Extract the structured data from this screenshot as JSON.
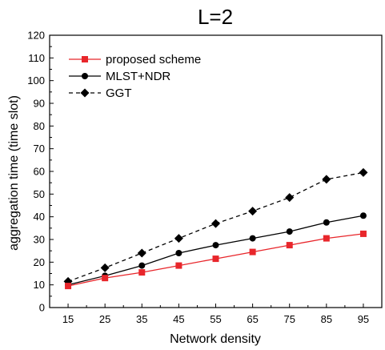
{
  "chart_data": {
    "type": "line",
    "title": "L=2",
    "xlabel": "Network density",
    "ylabel": "aggregation time (time slot)",
    "x": [
      15,
      25,
      35,
      45,
      55,
      65,
      75,
      85,
      95
    ],
    "xlim": [
      10,
      100
    ],
    "ylim": [
      0,
      120
    ],
    "yticks": [
      0,
      10,
      20,
      30,
      40,
      50,
      60,
      70,
      80,
      90,
      100,
      110,
      120
    ],
    "xticks": [
      15,
      25,
      35,
      45,
      55,
      65,
      75,
      85,
      95
    ],
    "grid": false,
    "legend_position": "top-left",
    "series": [
      {
        "name": "proposed scheme",
        "values": [
          9.5,
          13,
          15.5,
          18.5,
          21.5,
          24.5,
          27.5,
          30.5,
          32.5
        ],
        "color": "#e8262b",
        "marker": "square",
        "line_style": "solid"
      },
      {
        "name": "MLST+NDR",
        "values": [
          10,
          14,
          18.5,
          24,
          27.5,
          30.5,
          33.5,
          37.5,
          40.5
        ],
        "color": "#000000",
        "marker": "circle",
        "line_style": "solid"
      },
      {
        "name": "GGT",
        "values": [
          11.5,
          17.5,
          24,
          30.5,
          37,
          42.5,
          48.5,
          56.5,
          59.5
        ],
        "color": "#000000",
        "marker": "diamond",
        "line_style": "dashed"
      }
    ]
  }
}
